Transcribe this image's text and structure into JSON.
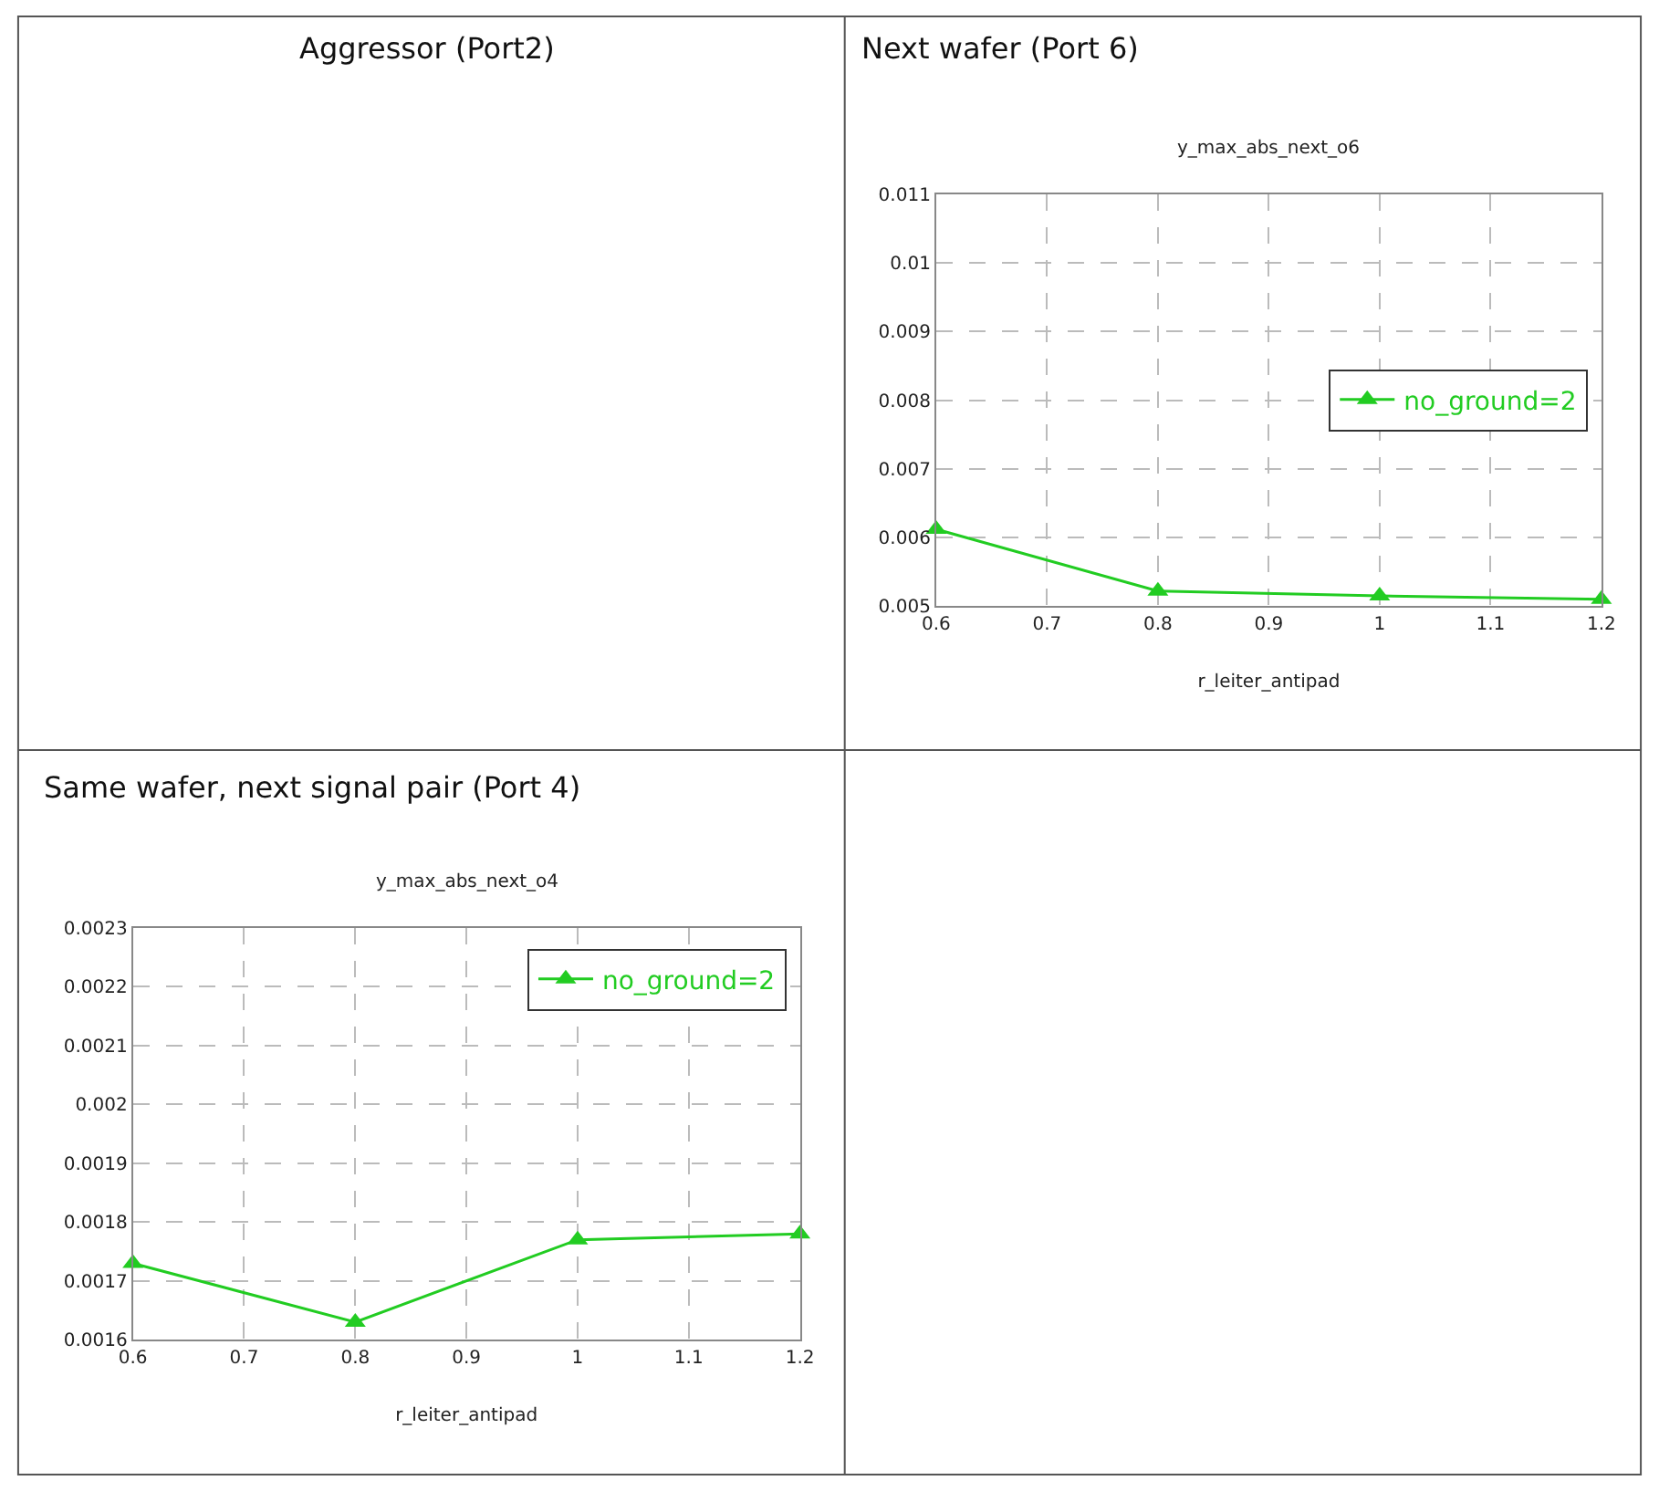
{
  "chart_data": [
    {
      "type": "other",
      "title": "Aggressor (Port2)"
    },
    {
      "type": "line",
      "title": "Next wafer (Port 6)",
      "subtitle": "y_max_abs_next_o6",
      "xlabel": "r_leiter_antipad",
      "x": [
        0.6,
        0.8,
        1.0,
        1.2
      ],
      "series": [
        {
          "name": "no_ground=2",
          "color": "#22cc22",
          "values": [
            0.00612,
            0.00522,
            0.00515,
            0.0051
          ]
        }
      ],
      "xlim": [
        0.6,
        1.2
      ],
      "xticks": [
        0.6,
        0.7,
        0.8,
        0.9,
        1,
        1.1,
        1.2
      ],
      "ylim": [
        0.005,
        0.011
      ],
      "yticks": [
        0.005,
        0.006,
        0.007,
        0.008,
        0.009,
        0.01,
        0.011
      ],
      "grid": true,
      "legend": "right",
      "marker": "triangle",
      "line_style": "solid"
    },
    {
      "type": "line",
      "title": "Same wafer, next signal pair (Port 4)",
      "subtitle": "y_max_abs_next_o4",
      "xlabel": "r_leiter_antipad",
      "x": [
        0.6,
        0.8,
        1.0,
        1.2
      ],
      "series": [
        {
          "name": "no_ground=2",
          "color": "#22cc22",
          "values": [
            0.00173,
            0.00163,
            0.00177,
            0.00178
          ]
        }
      ],
      "xlim": [
        0.6,
        1.2
      ],
      "xticks": [
        0.6,
        0.7,
        0.8,
        0.9,
        1,
        1.1,
        1.2
      ],
      "ylim": [
        0.0016,
        0.0023
      ],
      "yticks": [
        0.0016,
        0.0017,
        0.0018,
        0.0019,
        0.002,
        0.0021,
        0.0022,
        0.0023
      ],
      "grid": true,
      "legend": "top right",
      "marker": "triangle",
      "line_style": "solid"
    }
  ]
}
